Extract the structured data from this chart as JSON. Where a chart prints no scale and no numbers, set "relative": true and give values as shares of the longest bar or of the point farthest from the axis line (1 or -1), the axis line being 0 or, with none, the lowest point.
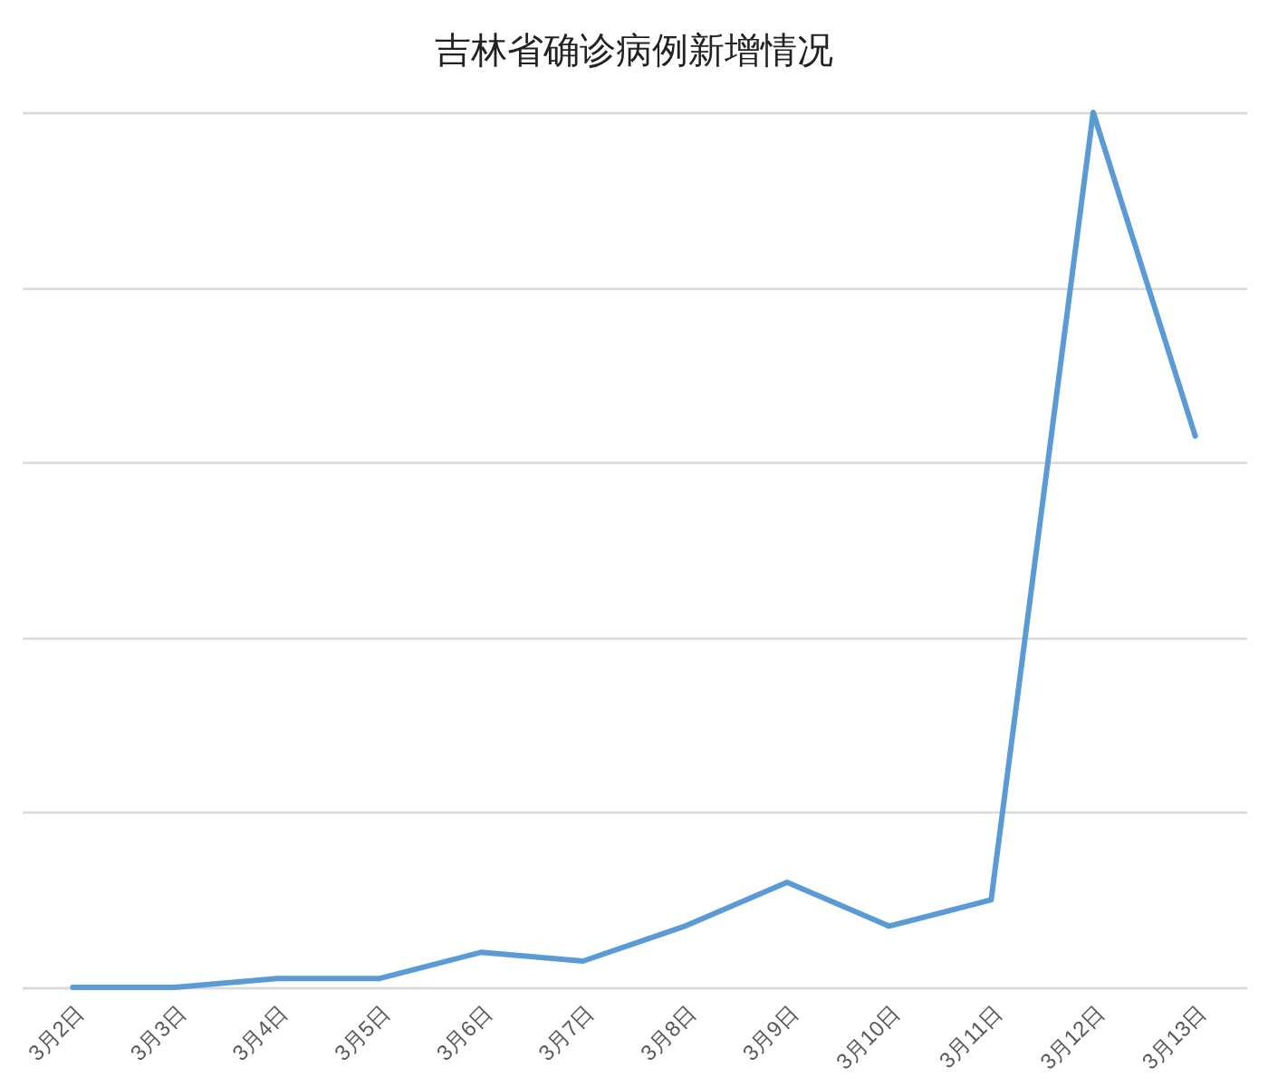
{
  "chart_data": {
    "type": "line",
    "title": "吉林省确诊病例新增情况",
    "categories": [
      "3月2日",
      "3月3日",
      "3月4日",
      "3月5日",
      "3月6日",
      "3月7日",
      "3月8日",
      "3月9日",
      "3月10日",
      "3月11日",
      "3月12日",
      "3月13日"
    ],
    "series": [
      {
        "color": "#5b9bd5",
        "values": [
          0,
          0,
          0.01,
          0.01,
          0.04,
          0.03,
          0.07,
          0.12,
          0.07,
          0.1,
          1,
          0.63
        ]
      }
    ],
    "relative": true,
    "grid": "y"
  }
}
